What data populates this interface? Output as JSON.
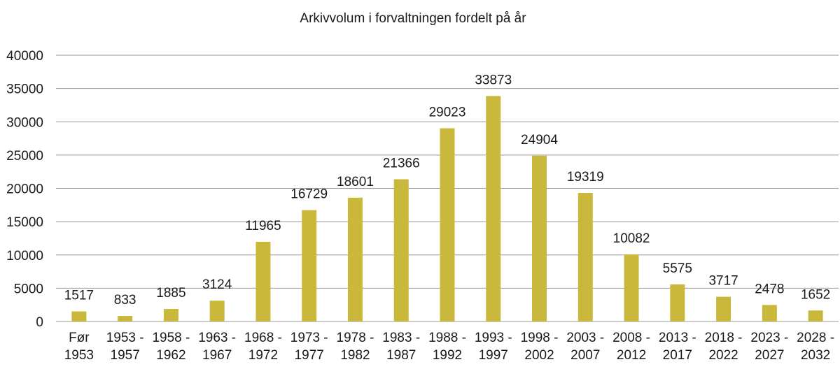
{
  "chart_data": {
    "type": "bar",
    "title": "Arkivvolum i forvaltningen fordelt på år",
    "categories": [
      [
        "Før",
        "1953"
      ],
      [
        "1953 -",
        "1957"
      ],
      [
        "1958 -",
        "1962"
      ],
      [
        "1963 -",
        "1967"
      ],
      [
        "1968 -",
        "1972"
      ],
      [
        "1973 -",
        "1977"
      ],
      [
        "1978 -",
        "1982"
      ],
      [
        "1983 -",
        "1987"
      ],
      [
        "1988 -",
        "1992"
      ],
      [
        "1993 -",
        "1997"
      ],
      [
        "1998 -",
        "2002"
      ],
      [
        "2003 -",
        "2007"
      ],
      [
        "2008 -",
        "2012"
      ],
      [
        "2013 -",
        "2017"
      ],
      [
        "2018 -",
        "2022"
      ],
      [
        "2023 -",
        "2027"
      ],
      [
        "2028 -",
        "2032"
      ]
    ],
    "values": [
      1517,
      833,
      1885,
      3124,
      11965,
      16729,
      18601,
      21366,
      29023,
      33873,
      24904,
      19319,
      10082,
      5575,
      3717,
      2478,
      1652
    ],
    "ylim": [
      0,
      40000
    ],
    "yticks": [
      0,
      5000,
      10000,
      15000,
      20000,
      25000,
      30000,
      35000,
      40000
    ],
    "grid": true,
    "bar_color": "#c9b83c",
    "grid_color": "#999999"
  }
}
